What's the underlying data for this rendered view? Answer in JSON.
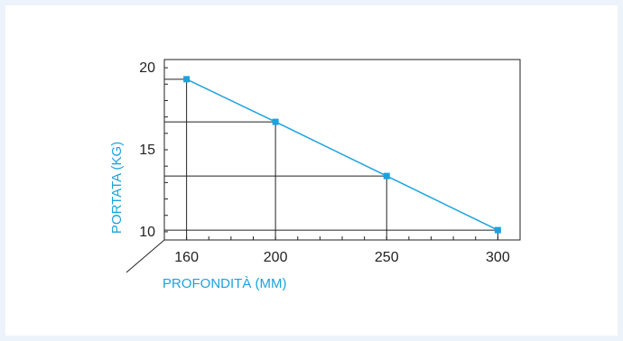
{
  "colors": {
    "accent": "#1aa3de",
    "axis": "#222222",
    "background": "#edf3fa",
    "panel": "#ffffff"
  },
  "chart_data": {
    "type": "line",
    "title": "",
    "xlabel": "PROFONDITÀ (MM)",
    "ylabel": "PORTATA (KG)",
    "x": [
      160,
      200,
      250,
      300
    ],
    "series": [
      {
        "values": [
          19.3,
          16.7,
          13.4,
          10.1
        ]
      }
    ],
    "xticks": [
      "160",
      "200",
      "250",
      "300"
    ],
    "yticks": [
      "10",
      "15",
      "20"
    ],
    "xlim": [
      150,
      310
    ],
    "ylim": [
      9.5,
      20.5
    ],
    "grid": false,
    "drop_lines": true
  }
}
